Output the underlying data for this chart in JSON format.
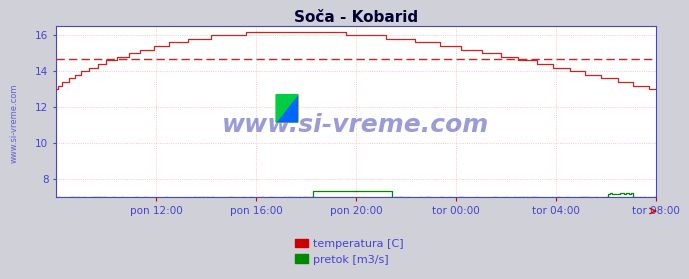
{
  "title": "Soča - Kobarid",
  "title_fontsize": 11,
  "bg_color": "#d0d0d8",
  "plot_bg_color": "#ffffff",
  "grid_color": "#ffb0b0",
  "border_color": "#4444cc",
  "text_color": "#4444cc",
  "tick_color": "#cc0000",
  "watermark": "www.si-vreme.com",
  "watermark_color": "#2222aa",
  "ylim": [
    7.0,
    16.5
  ],
  "yticks": [
    8,
    10,
    12,
    14,
    16
  ],
  "avg_line_value": 14.65,
  "avg_line_color": "#cc2222",
  "n_points": 288,
  "temp_color": "#cc2222",
  "flow_color": "#008800",
  "height_color": "#4444cc",
  "xlabel_color": "#4444cc",
  "xtick_labels": [
    "pon 12:00",
    "pon 16:00",
    "pon 20:00",
    "tor 00:00",
    "tor 04:00",
    "tor 08:00"
  ],
  "legend_temp_color": "#cc0000",
  "legend_flow_color": "#008800",
  "legend_temp_label": "temperatura [C]",
  "legend_flow_label": "pretok [m3/s]"
}
